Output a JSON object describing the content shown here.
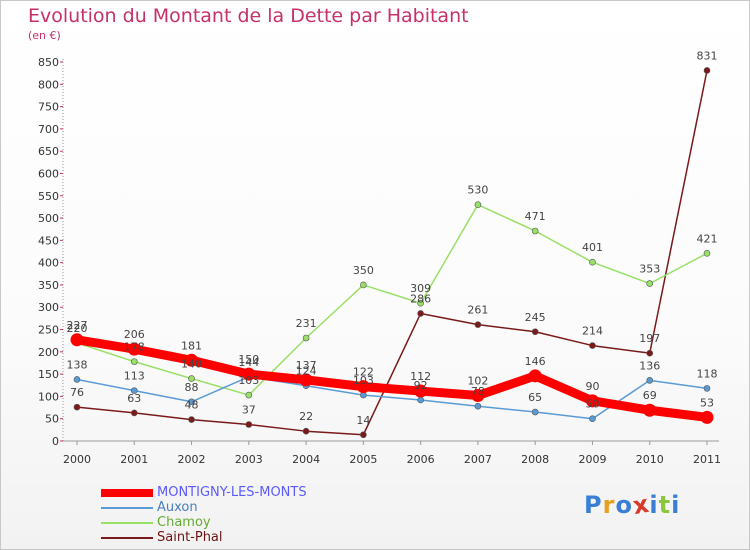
{
  "title": "Evolution du Montant de la Dette par Habitant",
  "subtitle": "(en €)",
  "logo": {
    "text": "Proxiti",
    "colors": [
      "#3a7fd5",
      "#e8a020",
      "#3a7fd5",
      "#d83a2a",
      "#3a7fd5",
      "#8cc63f",
      "#3a7fd5"
    ]
  },
  "chart_data": {
    "type": "line",
    "categories": [
      "2000",
      "2001",
      "2002",
      "2003",
      "2004",
      "2005",
      "2006",
      "2007",
      "2008",
      "2009",
      "2010",
      "2011"
    ],
    "ylim": [
      0,
      850
    ],
    "yticks": [
      0,
      50,
      100,
      150,
      200,
      250,
      300,
      350,
      400,
      450,
      500,
      550,
      600,
      650,
      700,
      750,
      800,
      850
    ],
    "grid": false,
    "legend_position": "bottom-left",
    "series": [
      {
        "name": "MONTIGNY-LES-MONTS",
        "color": "#ff0000",
        "label_color": "#5a5aff",
        "values": [
          227,
          206,
          181,
          150,
          137,
          122,
          112,
          102,
          146,
          90,
          69,
          53
        ]
      },
      {
        "name": "Auxon",
        "color": "#5b9bd5",
        "label_color": "#4a7fc0",
        "values": [
          138,
          113,
          88,
          144,
          124,
          103,
          92,
          78,
          65,
          50,
          136,
          118
        ]
      },
      {
        "name": "Chamoy",
        "color": "#99e066",
        "label_color": "#66aa33",
        "values": [
          220,
          178,
          140,
          103,
          231,
          350,
          309,
          530,
          471,
          401,
          353,
          421
        ]
      },
      {
        "name": "Saint-Phal",
        "color": "#7a1a1a",
        "label_color": "#6b1515",
        "values": [
          76,
          63,
          48,
          37,
          22,
          14,
          286,
          261,
          245,
          214,
          197,
          831
        ]
      }
    ]
  }
}
